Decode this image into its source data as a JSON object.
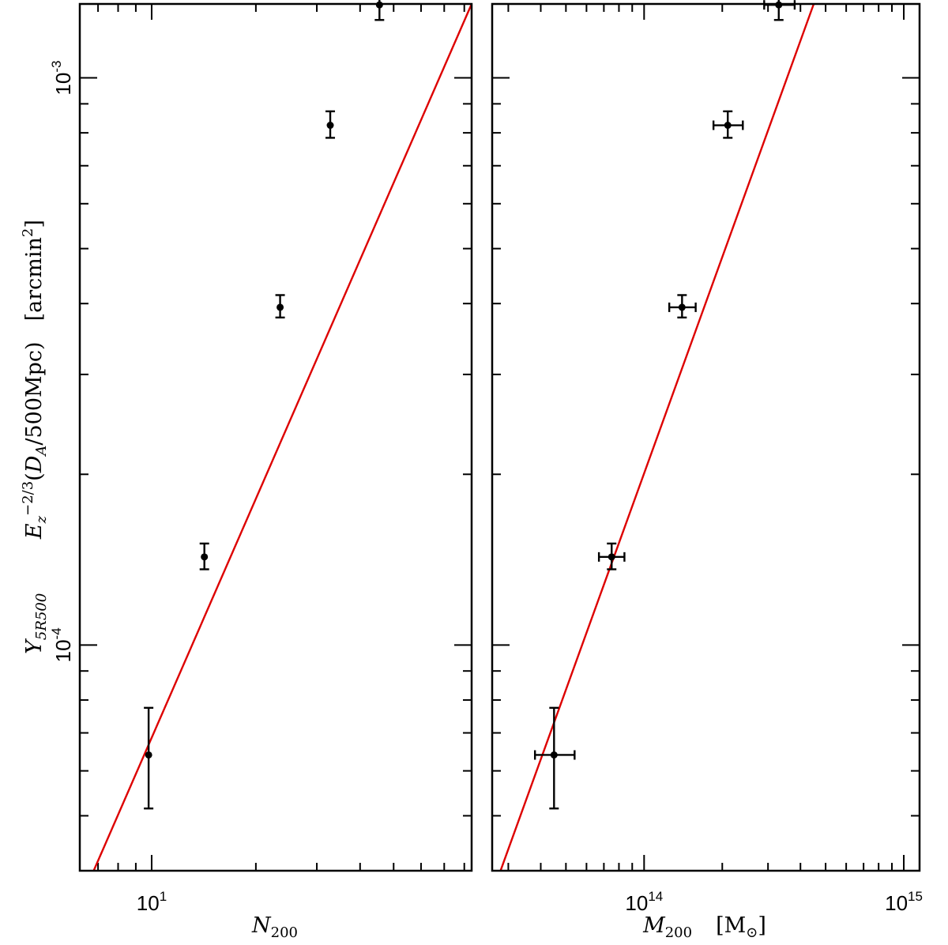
{
  "chart_data": [
    {
      "panel": "left",
      "type": "scatter",
      "xscale": "log",
      "yscale": "log",
      "xlim": [
        6.2,
        84
      ],
      "ylim": [
        4e-05,
        0.00135
      ],
      "x_ticklabels": [
        {
          "value": 10,
          "base": "10",
          "exp": "1"
        }
      ],
      "y_ticklabels": [
        {
          "value": 0.0001,
          "base": "10",
          "exp": "-4"
        },
        {
          "value": 0.001,
          "base": "10",
          "exp": "-3"
        }
      ],
      "xlabel": {
        "main": "N",
        "sub": "200"
      },
      "ylabel": {
        "y": "Y",
        "y_sub": "5R500",
        "e": "E",
        "e_sub": "z",
        "e_sup": "−2/3",
        "paren": "(",
        "da": "D",
        "da_sub": "A",
        "da_rest": "/500Mpc)",
        "unit": "[arcmin",
        "unit_sup": "2",
        "unit_close": "]"
      },
      "points": [
        {
          "x": 9.8,
          "y": 6.4e-05,
          "ylo": 5.15e-05,
          "yhi": 7.75e-05
        },
        {
          "x": 14.2,
          "y": 0.000143,
          "ylo": 0.000136,
          "yhi": 0.000151
        },
        {
          "x": 23.5,
          "y": 0.000394,
          "ylo": 0.000378,
          "yhi": 0.000414
        },
        {
          "x": 32.8,
          "y": 0.000825,
          "ylo": 0.000784,
          "yhi": 0.000873
        },
        {
          "x": 45.5,
          "y": 0.001345,
          "ylo": 0.001265,
          "yhi": 0.00143
        }
      ],
      "fit": {
        "x": [
          6.8,
          84
        ],
        "y": [
          4e-05,
          0.00135
        ]
      }
    },
    {
      "panel": "right",
      "type": "scatter",
      "xscale": "log",
      "yscale": "log",
      "xlim": [
        26000000000000.0,
        1150000000000000.0
      ],
      "ylim": [
        4e-05,
        0.00135
      ],
      "x_ticklabels": [
        {
          "value": 100000000000000.0,
          "base": "10",
          "exp": "14"
        },
        {
          "value": 1000000000000000.0,
          "base": "10",
          "exp": "15"
        }
      ],
      "xlabel": {
        "main": "M",
        "sub": "200",
        "unit": "[M",
        "unit_sub": "⊙",
        "unit_close": "]"
      },
      "points": [
        {
          "x": 45000000000000.0,
          "y": 6.4e-05,
          "ylo": 5.15e-05,
          "yhi": 7.75e-05,
          "xlo": 38000000000000.0,
          "xhi": 54000000000000.0
        },
        {
          "x": 75000000000000.0,
          "y": 0.000143,
          "ylo": 0.000136,
          "yhi": 0.000151,
          "xlo": 67000000000000.0,
          "xhi": 84000000000000.0
        },
        {
          "x": 140000000000000.0,
          "y": 0.000394,
          "ylo": 0.000378,
          "yhi": 0.000414,
          "xlo": 125000000000000.0,
          "xhi": 158000000000000.0
        },
        {
          "x": 210000000000000.0,
          "y": 0.000825,
          "ylo": 0.000784,
          "yhi": 0.000873,
          "xlo": 185000000000000.0,
          "xhi": 240000000000000.0
        },
        {
          "x": 330000000000000.0,
          "y": 0.001345,
          "ylo": 0.001265,
          "yhi": 0.00143,
          "xlo": 290000000000000.0,
          "xhi": 380000000000000.0
        }
      ],
      "fit": {
        "x": [
          28000000000000.0,
          450000000000000.0
        ],
        "y": [
          4e-05,
          0.00135
        ]
      }
    }
  ]
}
